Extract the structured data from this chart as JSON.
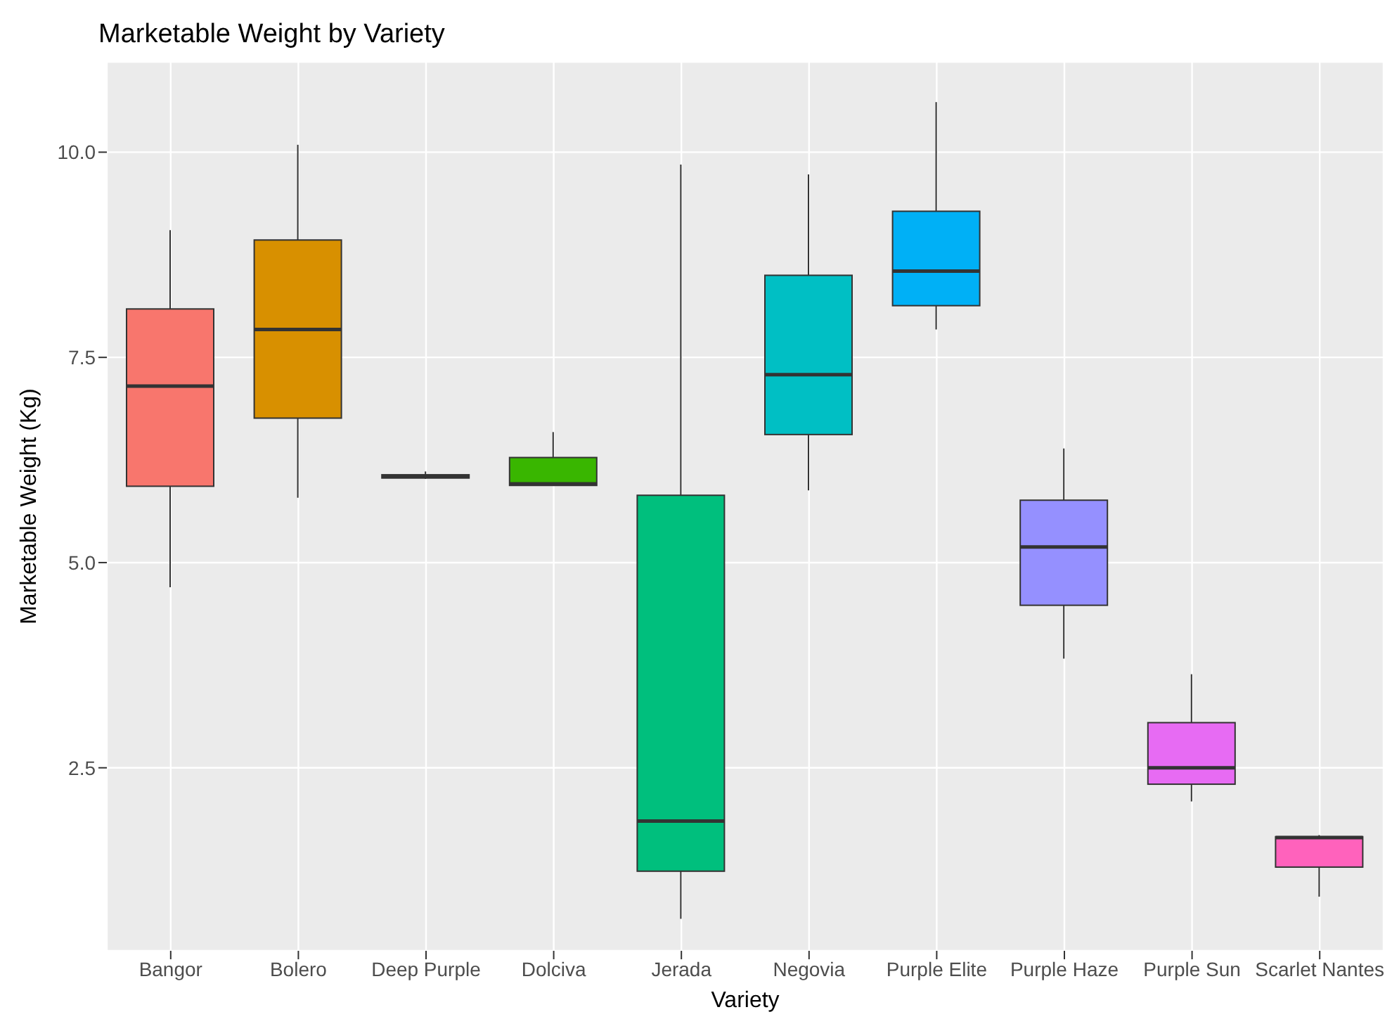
{
  "chart_data": {
    "type": "box",
    "title": "Marketable Weight by Variety",
    "xlabel": "Variety",
    "ylabel": "Marketable Weight (Kg)",
    "categories": [
      "Bangor",
      "Bolero",
      "Deep Purple",
      "Dolciva",
      "Jerada",
      "Negovia",
      "Purple Elite",
      "Purple Haze",
      "Purple Sun",
      "Scarlet Nantes"
    ],
    "colors": [
      "#f8766d",
      "#d89000",
      "#a3a500",
      "#39b600",
      "#00bf7d",
      "#00bfc4",
      "#00b0f6",
      "#9590ff",
      "#e76bf3",
      "#ff62bc"
    ],
    "boxes": [
      {
        "low": 4.7,
        "q1": 5.93,
        "median": 7.15,
        "q3": 8.09,
        "high": 9.05
      },
      {
        "low": 5.79,
        "q1": 6.76,
        "median": 7.84,
        "q3": 8.93,
        "high": 10.09
      },
      {
        "low": 6.02,
        "q1": 6.03,
        "median": 6.05,
        "q3": 6.07,
        "high": 6.11
      },
      {
        "low": 5.94,
        "q1": 5.94,
        "median": 5.96,
        "q3": 6.28,
        "high": 6.59
      },
      {
        "low": 0.66,
        "q1": 1.24,
        "median": 1.85,
        "q3": 5.82,
        "high": 9.85
      },
      {
        "low": 5.88,
        "q1": 6.56,
        "median": 7.29,
        "q3": 8.5,
        "high": 9.73
      },
      {
        "low": 7.84,
        "q1": 8.13,
        "median": 8.55,
        "q3": 9.28,
        "high": 10.61
      },
      {
        "low": 3.83,
        "q1": 4.48,
        "median": 5.19,
        "q3": 5.76,
        "high": 6.39
      },
      {
        "low": 2.09,
        "q1": 2.3,
        "median": 2.5,
        "q3": 3.05,
        "high": 3.64
      },
      {
        "low": 0.93,
        "q1": 1.29,
        "median": 1.65,
        "q3": 1.66,
        "high": 1.68
      }
    ],
    "ylim": [
      0.27,
      11.1
    ],
    "yticks": [
      {
        "value": 2.5,
        "label": "2.5"
      },
      {
        "value": 5,
        "label": "5.0"
      },
      {
        "value": 7.5,
        "label": "7.5"
      },
      {
        "value": 10,
        "label": "10.0"
      }
    ],
    "grid": true
  }
}
